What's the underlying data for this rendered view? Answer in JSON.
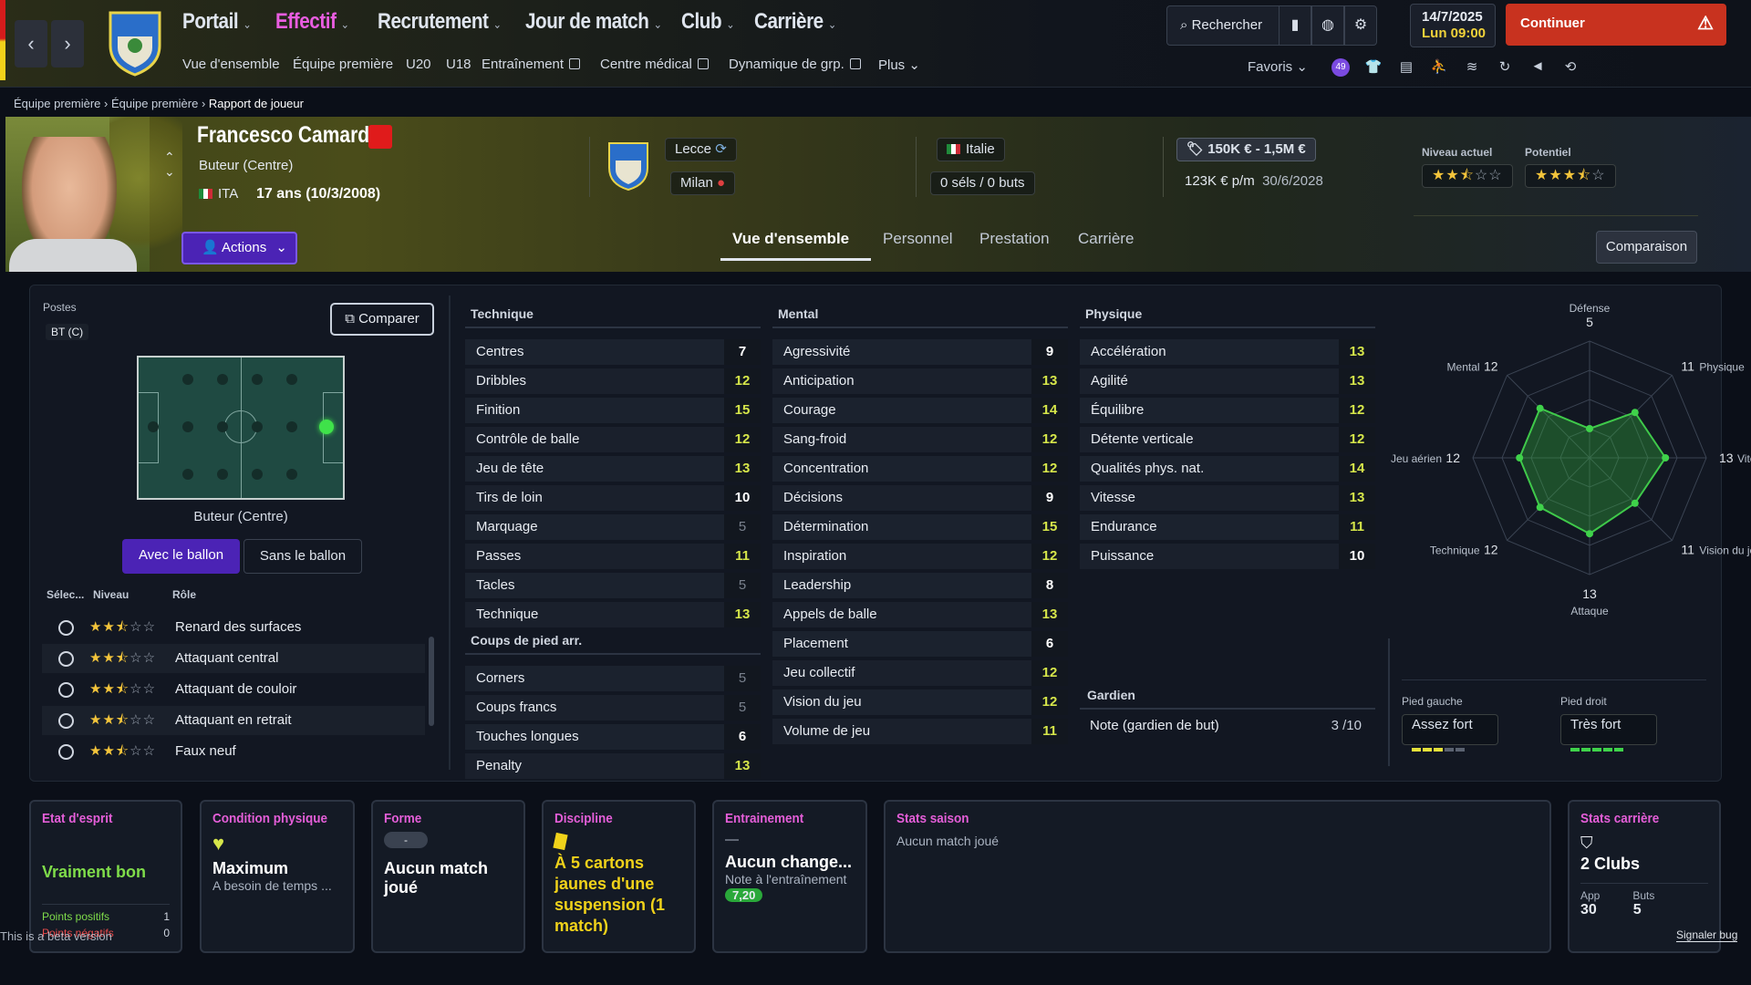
{
  "nav": {
    "menu": [
      "Portail",
      "Effectif",
      "Recrutement",
      "Jour de match",
      "Club",
      "Carrière"
    ],
    "submenu": [
      "Vue d'ensemble",
      "Équipe première",
      "U20",
      "U18",
      "Entraînement",
      "Centre médical",
      "Dynamique de grp.",
      "Plus"
    ],
    "search": "Rechercher",
    "date": "14/7/2025",
    "day_time": "Lun  09:00",
    "continue": "Continuer",
    "favoris": "Favoris",
    "badge": "49"
  },
  "breadcrumb": [
    "Équipe première",
    "Équipe première",
    "Rapport de joueur"
  ],
  "player": {
    "name": "Francesco Camarda",
    "position": "Buteur (Centre)",
    "nation": "ITA",
    "age": "17 ans (10/3/2008)",
    "actions": "Actions",
    "club": "Lecce",
    "loan_club": "Milan",
    "country": "Italie",
    "caps": "0 séls / 0 buts",
    "value": "150K € - 1,5M €",
    "wage": "123K € p/m",
    "contract": "30/6/2028",
    "current_label": "Niveau actuel",
    "potential_label": "Potentiel",
    "current_stars": 2.5,
    "potential_stars": 3.5
  },
  "tabs": [
    "Vue d'ensemble",
    "Personnel",
    "Prestation",
    "Carrière"
  ],
  "compare_btn": "Comparaison",
  "positions": {
    "label": "Postes",
    "code": "BT (C)",
    "compare": "Comparer",
    "pitch_label": "Buteur (Centre)",
    "with_ball": "Avec le ballon",
    "without_ball": "Sans le ballon",
    "col_select": "Sélec...",
    "col_level": "Niveau",
    "col_role": "Rôle",
    "roles": [
      {
        "name": "Renard des surfaces",
        "stars": 2.5
      },
      {
        "name": "Attaquant central",
        "stars": 2.5
      },
      {
        "name": "Attaquant de couloir",
        "stars": 2.5
      },
      {
        "name": "Attaquant en retrait",
        "stars": 2.5
      },
      {
        "name": "Faux neuf",
        "stars": 2.5
      }
    ]
  },
  "technique": {
    "title": "Technique",
    "rows": [
      [
        "Centres",
        "7"
      ],
      [
        "Dribbles",
        "12"
      ],
      [
        "Finition",
        "15"
      ],
      [
        "Contrôle de balle",
        "12"
      ],
      [
        "Jeu de tête",
        "13"
      ],
      [
        "Tirs de loin",
        "10"
      ],
      [
        "Marquage",
        "5"
      ],
      [
        "Passes",
        "11"
      ],
      [
        "Tacles",
        "5"
      ],
      [
        "Technique",
        "13"
      ]
    ]
  },
  "set_pieces": {
    "title": "Coups de pied arr.",
    "rows": [
      [
        "Corners",
        "5"
      ],
      [
        "Coups francs",
        "5"
      ],
      [
        "Touches longues",
        "6"
      ],
      [
        "Penalty",
        "13"
      ]
    ]
  },
  "mental": {
    "title": "Mental",
    "rows": [
      [
        "Agressivité",
        "9"
      ],
      [
        "Anticipation",
        "13"
      ],
      [
        "Courage",
        "14"
      ],
      [
        "Sang-froid",
        "12"
      ],
      [
        "Concentration",
        "12"
      ],
      [
        "Décisions",
        "9"
      ],
      [
        "Détermination",
        "15"
      ],
      [
        "Inspiration",
        "12"
      ],
      [
        "Leadership",
        "8"
      ],
      [
        "Appels de balle",
        "13"
      ],
      [
        "Placement",
        "6"
      ],
      [
        "Jeu collectif",
        "12"
      ],
      [
        "Vision du jeu",
        "12"
      ],
      [
        "Volume de jeu",
        "11"
      ]
    ]
  },
  "physical": {
    "title": "Physique",
    "rows": [
      [
        "Accélération",
        "13"
      ],
      [
        "Agilité",
        "13"
      ],
      [
        "Équilibre",
        "12"
      ],
      [
        "Détente verticale",
        "12"
      ],
      [
        "Qualités phys. nat.",
        "14"
      ],
      [
        "Vitesse",
        "13"
      ],
      [
        "Endurance",
        "11"
      ],
      [
        "Puissance",
        "10"
      ]
    ]
  },
  "goalkeeper": {
    "title": "Gardien",
    "label": "Note (gardien de but)",
    "value": "3 /10"
  },
  "radar": {
    "axes": [
      {
        "name": "Défense",
        "value": "5"
      },
      {
        "name": "Physique",
        "value": "11"
      },
      {
        "name": "Vitesse",
        "value": "13"
      },
      {
        "name": "Vision du jeu",
        "value": "11"
      },
      {
        "name": "Attaque",
        "value": "13"
      },
      {
        "name": "Technique",
        "value": "12"
      },
      {
        "name": "Jeu aérien",
        "value": "12"
      },
      {
        "name": "Mental",
        "value": "12"
      }
    ]
  },
  "feet": {
    "left_label": "Pied gauche",
    "left": "Assez fort",
    "right_label": "Pied droit",
    "right": "Très fort"
  },
  "cards": {
    "esprit": {
      "title": "Etat d'esprit",
      "value": "Vraiment bon",
      "pos": "Points positifs",
      "pos_v": "1",
      "neg": "Points négatifs",
      "neg_v": "0"
    },
    "condition": {
      "title": "Condition physique",
      "value": "Maximum",
      "sub": "A besoin de temps ..."
    },
    "forme": {
      "title": "Forme",
      "chip": "-",
      "value": "Aucun match joué"
    },
    "discipline": {
      "title": "Discipline",
      "value": "À 5 cartons jaunes d'une suspension (1 match)"
    },
    "entrainement": {
      "title": "Entrainement",
      "dash": "—",
      "value": "Aucun change...",
      "sub": "Note à l'entraînement",
      "note": "7,20"
    },
    "saison": {
      "title": "Stats saison",
      "value": "Aucun match joué"
    },
    "carriere": {
      "title": "Stats carrière",
      "value": "2 Clubs",
      "app_l": "App",
      "app": "30",
      "buts_l": "Buts",
      "buts": "5"
    }
  },
  "watermark": "This is a beta version",
  "bug": "Signaler bug"
}
